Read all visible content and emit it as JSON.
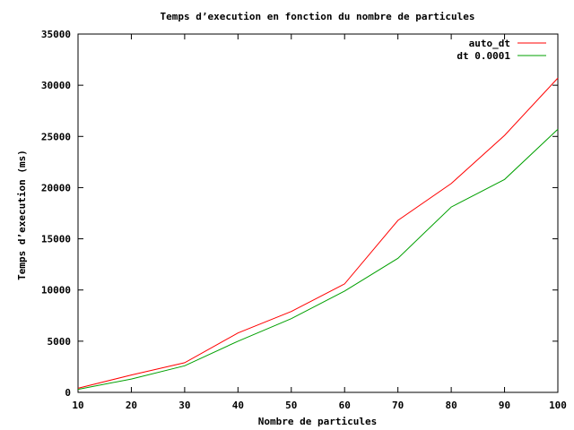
{
  "chart_data": {
    "type": "line",
    "title": "Temps d’execution en fonction du nombre de particules",
    "xlabel": "Nombre de particules",
    "ylabel": "Temps d’execution (ms)",
    "xlim": [
      10,
      100
    ],
    "ylim": [
      0,
      35000
    ],
    "xticks": [
      10,
      20,
      30,
      40,
      50,
      60,
      70,
      80,
      90,
      100
    ],
    "yticks": [
      0,
      5000,
      10000,
      15000,
      20000,
      25000,
      30000,
      35000
    ],
    "x": [
      10,
      20,
      30,
      40,
      50,
      60,
      70,
      80,
      90,
      100
    ],
    "grid": false,
    "legend": "top-right",
    "series": [
      {
        "name": "auto_dt",
        "color": "#ff0000",
        "values": [
          400,
          1700,
          2900,
          5800,
          7900,
          10600,
          16800,
          20400,
          25100,
          30700
        ]
      },
      {
        "name": "dt 0.0001",
        "color": "#00a000",
        "values": [
          300,
          1300,
          2600,
          5000,
          7200,
          9900,
          13100,
          18100,
          20800,
          25700
        ]
      }
    ]
  }
}
